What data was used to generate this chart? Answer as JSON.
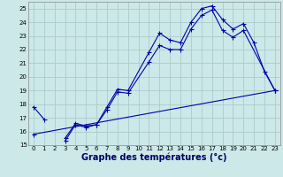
{
  "title": "Graphe des températures (°c)",
  "bg_color": "#cce8e8",
  "grid_color": "#aacccc",
  "line_color": "#0000aa",
  "xlim": [
    -0.5,
    23.5
  ],
  "ylim": [
    15,
    25.5
  ],
  "xticks": [
    0,
    1,
    2,
    3,
    4,
    5,
    6,
    7,
    8,
    9,
    10,
    11,
    12,
    13,
    14,
    15,
    16,
    17,
    18,
    19,
    20,
    21,
    22,
    23
  ],
  "yticks": [
    15,
    16,
    17,
    18,
    19,
    20,
    21,
    22,
    23,
    24,
    25
  ],
  "series1_x": [
    0,
    1,
    2,
    3,
    4,
    5,
    6,
    7,
    8,
    9,
    11,
    12,
    13,
    14,
    15,
    16,
    17,
    18,
    19,
    20,
    21,
    22,
    23
  ],
  "series1_y": [
    17.8,
    16.9,
    null,
    15.5,
    16.6,
    16.4,
    16.5,
    17.8,
    19.1,
    19.0,
    21.8,
    23.2,
    22.7,
    22.5,
    24.0,
    25.0,
    25.2,
    24.2,
    23.5,
    23.9,
    22.5,
    20.4,
    19.0
  ],
  "series2_x": [
    3,
    4,
    5,
    6,
    7,
    8,
    9,
    11,
    12,
    13,
    14,
    15,
    16,
    17,
    18,
    19,
    20,
    23
  ],
  "series2_y": [
    15.3,
    16.5,
    16.3,
    16.5,
    17.6,
    18.9,
    18.8,
    21.1,
    22.3,
    22.0,
    22.0,
    23.5,
    24.5,
    24.9,
    23.4,
    22.9,
    23.4,
    19.0
  ],
  "series3_x": [
    0,
    23
  ],
  "series3_y": [
    15.8,
    19.0
  ],
  "xlabel_fontsize": 7,
  "tick_fontsize": 5
}
